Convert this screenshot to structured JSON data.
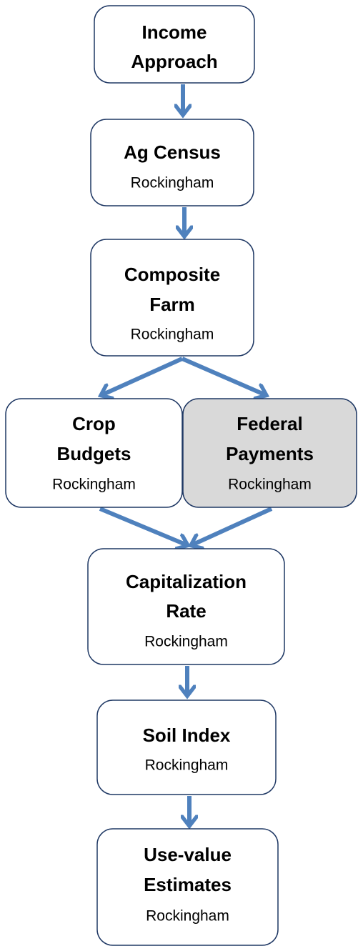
{
  "nodes": [
    {
      "title_lines": [
        "Income",
        "Approach"
      ]
    },
    {
      "title_lines": [
        "Ag Census"
      ],
      "subtitle": "Rockingham"
    },
    {
      "title_lines": [
        "Composite",
        "Farm"
      ],
      "subtitle": "Rockingham"
    },
    {
      "title_lines": [
        "Crop",
        "Budgets"
      ],
      "subtitle": "Rockingham"
    },
    {
      "title_lines": [
        "Federal",
        "Payments"
      ],
      "subtitle": "Rockingham"
    },
    {
      "title_lines": [
        "Capitalization",
        "Rate"
      ],
      "subtitle": "Rockingham"
    },
    {
      "title_lines": [
        "Soil Index"
      ],
      "subtitle": "Rockingham"
    },
    {
      "title_lines": [
        "Use-value",
        "Estimates"
      ],
      "subtitle": "Rockingham"
    }
  ]
}
